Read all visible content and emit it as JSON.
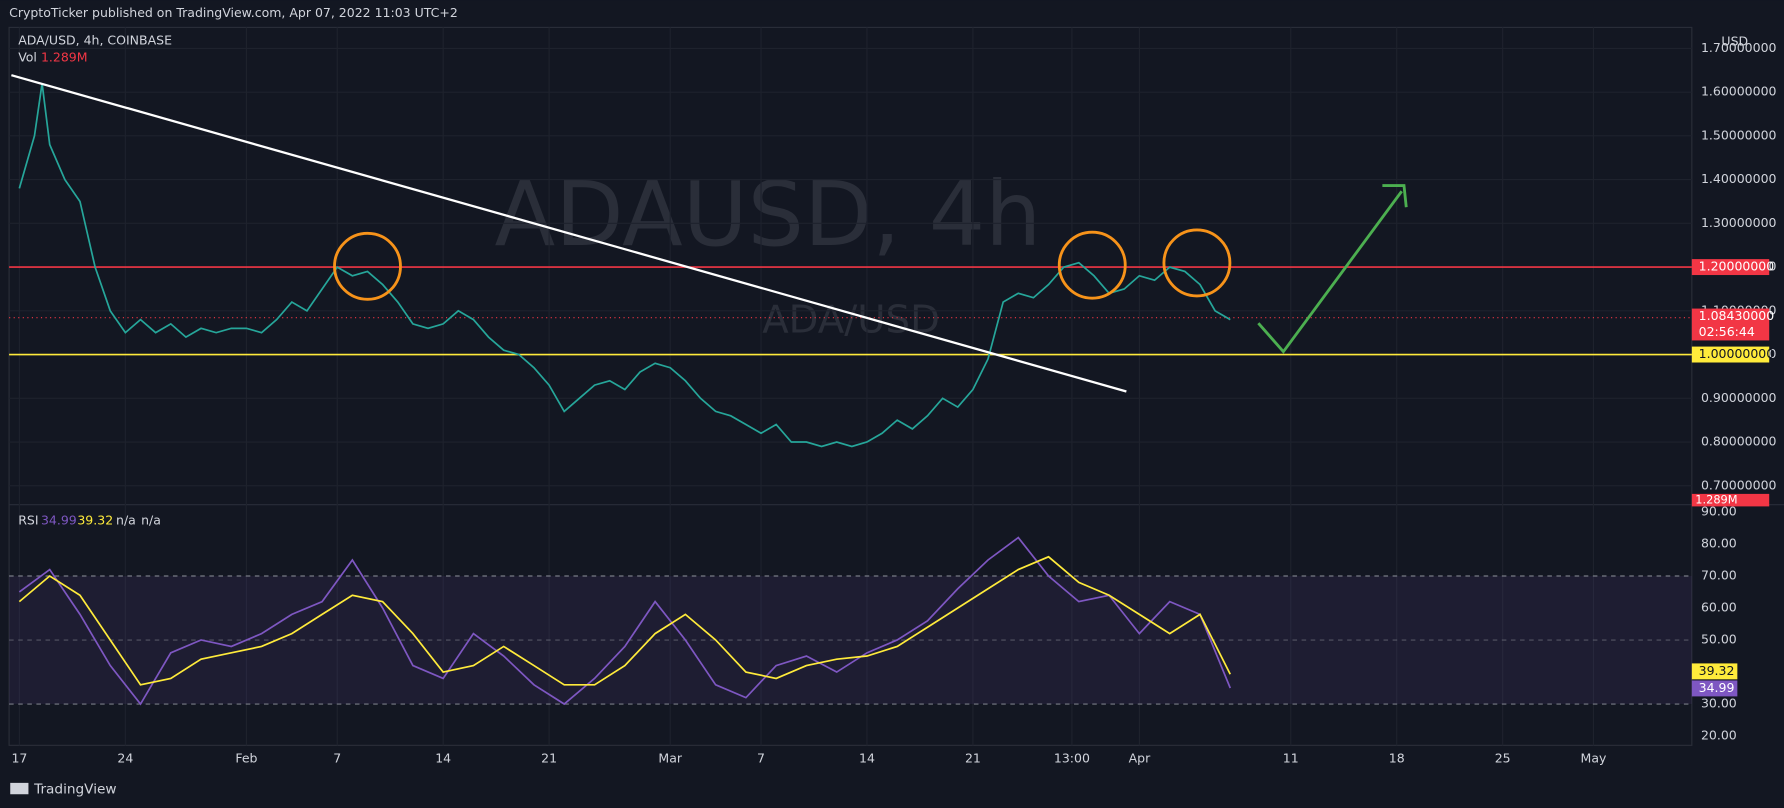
{
  "header": "CryptoTicker published on TradingView.com, Apr 07, 2022 11:03 UTC+2",
  "footer": "TradingView",
  "chart_data": [
    {
      "type": "line",
      "title": "ADA/USD, 4h, COINBASE",
      "watermark": "ADAUSD, 4h",
      "watermark_sub": "ADA/USD",
      "volume_label": "Vol",
      "volume_value": "1.289M",
      "axis_unit": "USD",
      "x": [
        0,
        1,
        1.5,
        2,
        3,
        4,
        5,
        6,
        7,
        8,
        9,
        10,
        11,
        12,
        13,
        14,
        15,
        16,
        17,
        18,
        19,
        20,
        21,
        22,
        23,
        24,
        25,
        26,
        27,
        28,
        29,
        30,
        31,
        32,
        33,
        34,
        35,
        36,
        37,
        38,
        39,
        40,
        41,
        42,
        43,
        44,
        45,
        46,
        47,
        48,
        49,
        50,
        51,
        52,
        53,
        54,
        55,
        56,
        57,
        58,
        59,
        60,
        61,
        62,
        63,
        64,
        65,
        66,
        67,
        68,
        69,
        70,
        71,
        72,
        73,
        74,
        75,
        76,
        77,
        78,
        79,
        80
      ],
      "series": [
        {
          "color": "#26a69a",
          "values": [
            1.38,
            1.5,
            1.62,
            1.48,
            1.4,
            1.35,
            1.2,
            1.1,
            1.05,
            1.08,
            1.05,
            1.07,
            1.04,
            1.06,
            1.05,
            1.06,
            1.06,
            1.05,
            1.08,
            1.12,
            1.1,
            1.15,
            1.2,
            1.18,
            1.19,
            1.16,
            1.12,
            1.07,
            1.06,
            1.07,
            1.1,
            1.08,
            1.04,
            1.01,
            1.0,
            0.97,
            0.93,
            0.87,
            0.9,
            0.93,
            0.94,
            0.92,
            0.96,
            0.98,
            0.97,
            0.94,
            0.9,
            0.87,
            0.86,
            0.84,
            0.82,
            0.84,
            0.8,
            0.8,
            0.79,
            0.8,
            0.79,
            0.8,
            0.82,
            0.85,
            0.83,
            0.86,
            0.9,
            0.88,
            0.92,
            0.99,
            1.12,
            1.14,
            1.13,
            1.16,
            1.2,
            1.21,
            1.18,
            1.14,
            1.15,
            1.18,
            1.17,
            1.2,
            1.19,
            1.16,
            1.1,
            1.08
          ]
        }
      ],
      "xlim": [
        -0.68,
        110.5
      ],
      "xticks": [
        {
          "value": 0,
          "label": "17"
        },
        {
          "value": 7,
          "label": "24"
        },
        {
          "value": 15,
          "label": "Feb"
        },
        {
          "value": 21,
          "label": "7"
        },
        {
          "value": 28,
          "label": "14"
        },
        {
          "value": 35,
          "label": "21"
        },
        {
          "value": 43,
          "label": "Mar"
        },
        {
          "value": 49,
          "label": "7"
        },
        {
          "value": 56,
          "label": "14"
        },
        {
          "value": 63,
          "label": "21"
        },
        {
          "value": 69.54,
          "label": "13:00"
        },
        {
          "value": 74,
          "label": "Apr"
        },
        {
          "value": 84,
          "label": "11"
        },
        {
          "value": 91,
          "label": "18"
        },
        {
          "value": 98,
          "label": "25"
        },
        {
          "value": 104,
          "label": "May"
        }
      ],
      "ylim": [
        0.658,
        1.748
      ],
      "yticks": [
        {
          "value": 0.7,
          "label": "0.70000000"
        },
        {
          "value": 0.8,
          "label": "0.80000000"
        },
        {
          "value": 0.9,
          "label": "0.90000000"
        },
        {
          "value": 1.0,
          "label": "1.00000000"
        },
        {
          "value": 1.1,
          "label": "1.10000000"
        },
        {
          "value": 1.2,
          "label": "1.20000000"
        },
        {
          "value": 1.3,
          "label": "1.30000000"
        },
        {
          "value": 1.4,
          "label": "1.40000000"
        },
        {
          "value": 1.5,
          "label": "1.50000000"
        },
        {
          "value": 1.6,
          "label": "1.60000000"
        },
        {
          "value": 1.7,
          "label": "1.70000000"
        }
      ],
      "levels": [
        {
          "value": 1.2,
          "label": "1.20000000",
          "color": "#f23645"
        },
        {
          "value": 1.0,
          "label": "1.00000000",
          "color": "#ffeb3b"
        }
      ],
      "last_price": {
        "value": 1.0843,
        "label": "1.08430000",
        "countdown": "02:56:44",
        "color": "#f23645"
      },
      "grid": true
    },
    {
      "type": "line",
      "title": "RSI",
      "header_extra": [
        "n/a",
        "n/a"
      ],
      "x": [
        0,
        2,
        4,
        6,
        8,
        10,
        12,
        14,
        16,
        18,
        20,
        22,
        24,
        26,
        28,
        30,
        32,
        34,
        36,
        38,
        40,
        42,
        44,
        46,
        48,
        50,
        52,
        54,
        56,
        58,
        60,
        62,
        64,
        66,
        68,
        70,
        72,
        74,
        76,
        78,
        80
      ],
      "series": [
        {
          "color": "#7e57c2",
          "values": [
            65,
            72,
            58,
            42,
            30,
            46,
            50,
            48,
            52,
            58,
            62,
            75,
            60,
            42,
            38,
            52,
            45,
            36,
            30,
            38,
            48,
            62,
            50,
            36,
            32,
            42,
            45,
            40,
            46,
            50,
            56,
            66,
            75,
            82,
            70,
            62,
            64,
            52,
            62,
            58,
            34.99
          ]
        },
        {
          "color": "#ffeb3b",
          "values": [
            62,
            70,
            64,
            50,
            36,
            38,
            44,
            46,
            48,
            52,
            58,
            64,
            62,
            52,
            40,
            42,
            48,
            42,
            36,
            36,
            42,
            52,
            58,
            50,
            40,
            38,
            42,
            44,
            45,
            48,
            54,
            60,
            66,
            72,
            76,
            68,
            64,
            58,
            52,
            58,
            39.32
          ]
        }
      ],
      "xlim": [
        -0.68,
        110.5
      ],
      "ylim": [
        17.1,
        92.1
      ],
      "yticks": [
        {
          "value": 20,
          "label": "20.00"
        },
        {
          "value": 30,
          "label": "30.00"
        },
        {
          "value": 40,
          "label": "40.00"
        },
        {
          "value": 50,
          "label": "50.00"
        },
        {
          "value": 60,
          "label": "60.00"
        },
        {
          "value": 70,
          "label": "70.00"
        },
        {
          "value": 80,
          "label": "80.00"
        },
        {
          "value": 90,
          "label": "90.00"
        }
      ],
      "band": [
        30,
        70
      ],
      "midline": 50
    }
  ]
}
